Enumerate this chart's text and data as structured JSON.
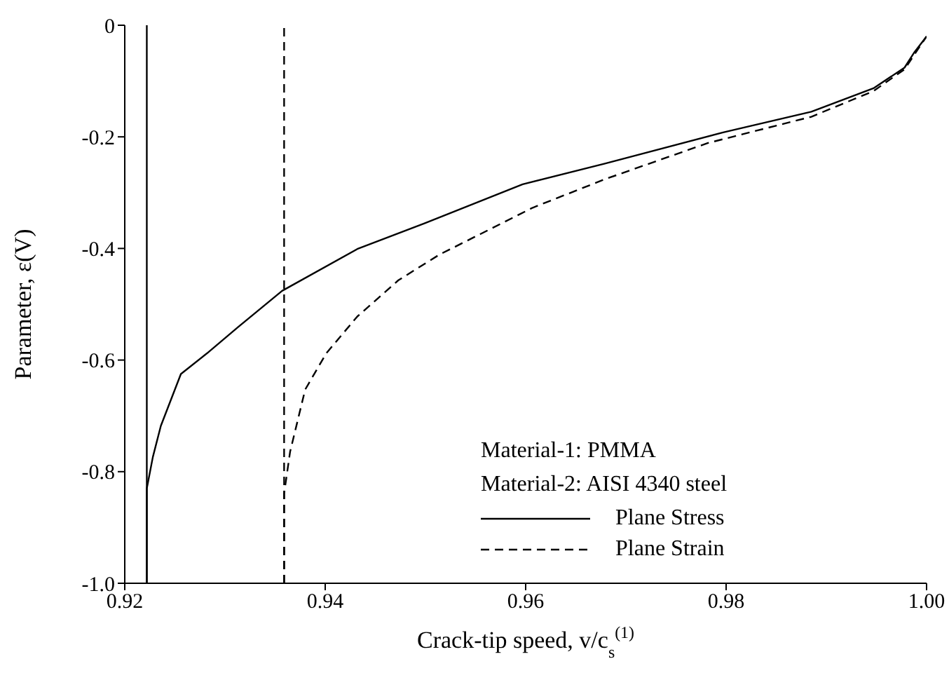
{
  "chart_data": {
    "type": "line",
    "xlabel": "Crack-tip speed, v/c$_{s}$$^{(1)}$",
    "ylabel": "Parameter, ε(V)",
    "xlim": [
      0.92,
      1.0
    ],
    "xticks": [
      0.92,
      0.94,
      0.96,
      0.98,
      {
        "value": 1.0,
        "label": "1.00"
      }
    ],
    "ylim": [
      -1.0,
      0
    ],
    "yticks": [
      {
        "value": -1.0,
        "label": "-1.0"
      },
      -0.8,
      -0.6,
      -0.4,
      -0.2,
      0
    ],
    "grid": false,
    "legend": "bottom right",
    "marker": "none",
    "annotations": [
      "Material-1: PMMA",
      "Material-2: AISI 4340 steel"
    ],
    "ref_lines": [
      {
        "axis": "x",
        "value": 0.9222,
        "color": "#000000",
        "line_style": "solid"
      },
      {
        "axis": "x",
        "value": 0.9359,
        "color": "#000000",
        "line_style": "dashed"
      }
    ],
    "series": [
      {
        "name": "Plane Stress",
        "color": "#000000",
        "line_style": "solid",
        "x": [
          0.9222,
          0.9222,
          0.9228,
          0.9236,
          0.9256,
          0.9282,
          0.9313,
          0.9357,
          0.9432,
          0.9499,
          0.9597,
          0.9679,
          0.9797,
          0.9885,
          0.9947,
          0.9978,
          0.9988,
          1.0
        ],
        "values": [
          -1.0,
          -0.83,
          -0.774,
          -0.718,
          -0.625,
          -0.588,
          -0.541,
          -0.476,
          -0.401,
          -0.355,
          -0.285,
          -0.248,
          -0.192,
          -0.155,
          -0.113,
          -0.076,
          -0.048,
          -0.02
        ]
      },
      {
        "name": "Plane Strain",
        "color": "#000000",
        "line_style": "dashed",
        "x": [
          0.9359,
          0.9359,
          0.9365,
          0.938,
          0.9401,
          0.9432,
          0.9473,
          0.9514,
          0.9555,
          0.9607,
          0.9679,
          0.9782,
          0.9885,
          0.9947,
          0.9978,
          1.0
        ],
        "values": [
          -1.0,
          -0.839,
          -0.764,
          -0.653,
          -0.588,
          -0.522,
          -0.457,
          -0.411,
          -0.374,
          -0.327,
          -0.276,
          -0.211,
          -0.164,
          -0.118,
          -0.079,
          -0.02
        ]
      }
    ]
  }
}
